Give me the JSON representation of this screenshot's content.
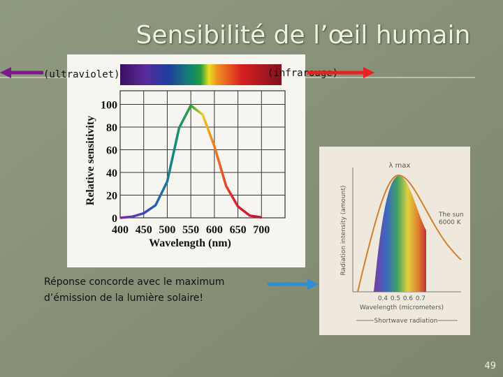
{
  "title": "Sensibilité de l’œil humain",
  "labels": {
    "ultraviolet": "(ultraviolet)",
    "infrared": "(infrarouge)"
  },
  "note": [
    "Réponse concorde avec le maximum",
    "d’émission de la lumière solaire!"
  ],
  "page_number": "49",
  "sensitivity_chart": {
    "type": "line",
    "y_label": "Relative sensitivity",
    "x_label": "Wavelength (nm)",
    "x": [
      400,
      425,
      450,
      475,
      500,
      525,
      550,
      575,
      600,
      625,
      650,
      675,
      700
    ],
    "values": [
      0,
      1,
      4,
      11,
      32,
      79,
      99,
      91,
      63,
      28,
      10,
      2,
      0.4
    ],
    "xlim": [
      400,
      750
    ],
    "ylim": [
      0,
      112
    ],
    "xticks": [
      400,
      450,
      500,
      550,
      600,
      650,
      700
    ],
    "yticks": [
      0,
      20,
      40,
      60,
      80,
      100
    ],
    "grid": true
  },
  "sun_figure": {
    "y_label": "Radiation intensity (amount)",
    "peak_label": "λ max",
    "sun_label": [
      "The sun",
      "6000 K"
    ],
    "ticks": [
      "0.4",
      "0.5",
      "0.6",
      "0.7"
    ],
    "x_label": "Wavelength (micrometers)",
    "band_label": "Shortwave radiation"
  }
}
